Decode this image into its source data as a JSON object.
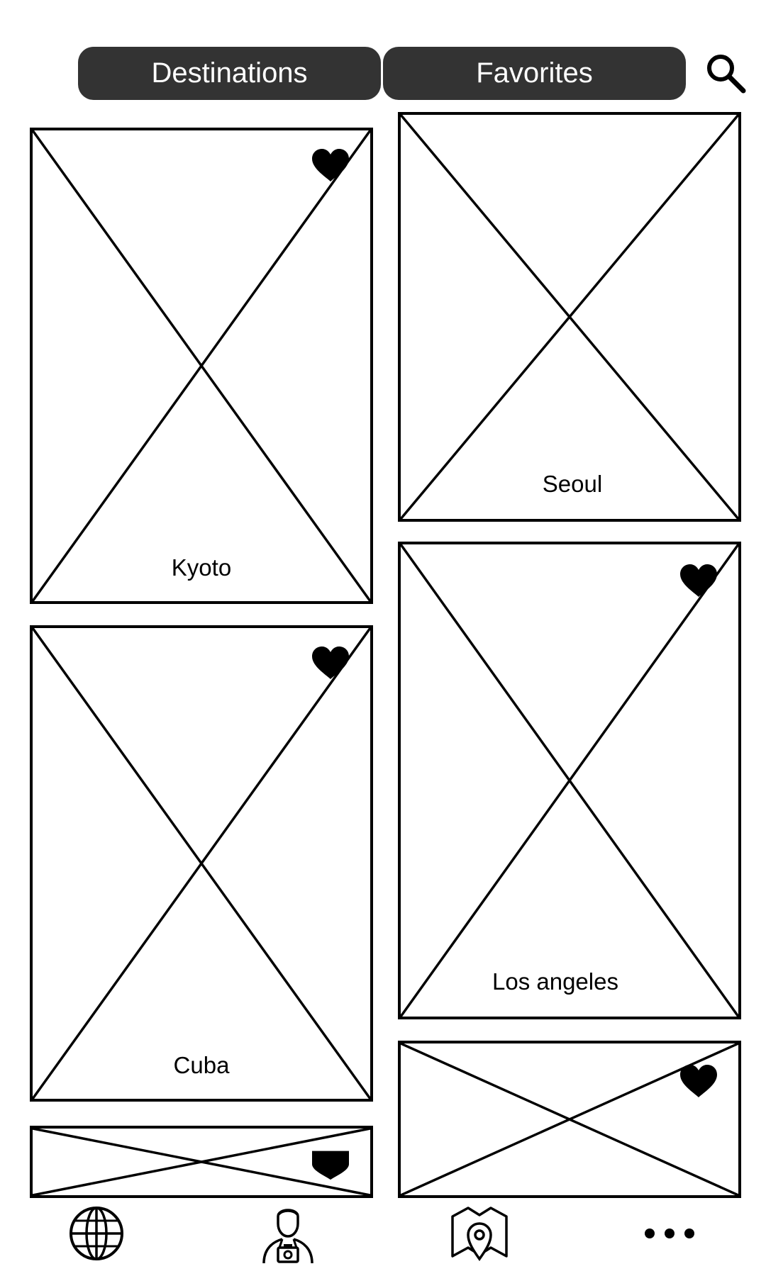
{
  "tabs": [
    {
      "label": "Destinations"
    },
    {
      "label": "Favorites"
    }
  ],
  "search": {
    "icon": "search-icon"
  },
  "cards": [
    {
      "label": "Kyoto",
      "favorite": true
    },
    {
      "label": "Seoul",
      "favorite": false
    },
    {
      "label": "Cuba",
      "favorite": true
    },
    {
      "label": "Los angeles",
      "favorite": true
    },
    {
      "label": "",
      "favorite": true
    },
    {
      "label": "",
      "favorite": true
    }
  ],
  "bottom_nav": [
    {
      "icon": "globe-icon"
    },
    {
      "icon": "photographer-icon"
    },
    {
      "icon": "map-pin-icon"
    },
    {
      "icon": "more-dots-icon"
    }
  ],
  "colors": {
    "tab_bg": "#333333",
    "tab_text": "#ffffff",
    "stroke": "#000000"
  }
}
